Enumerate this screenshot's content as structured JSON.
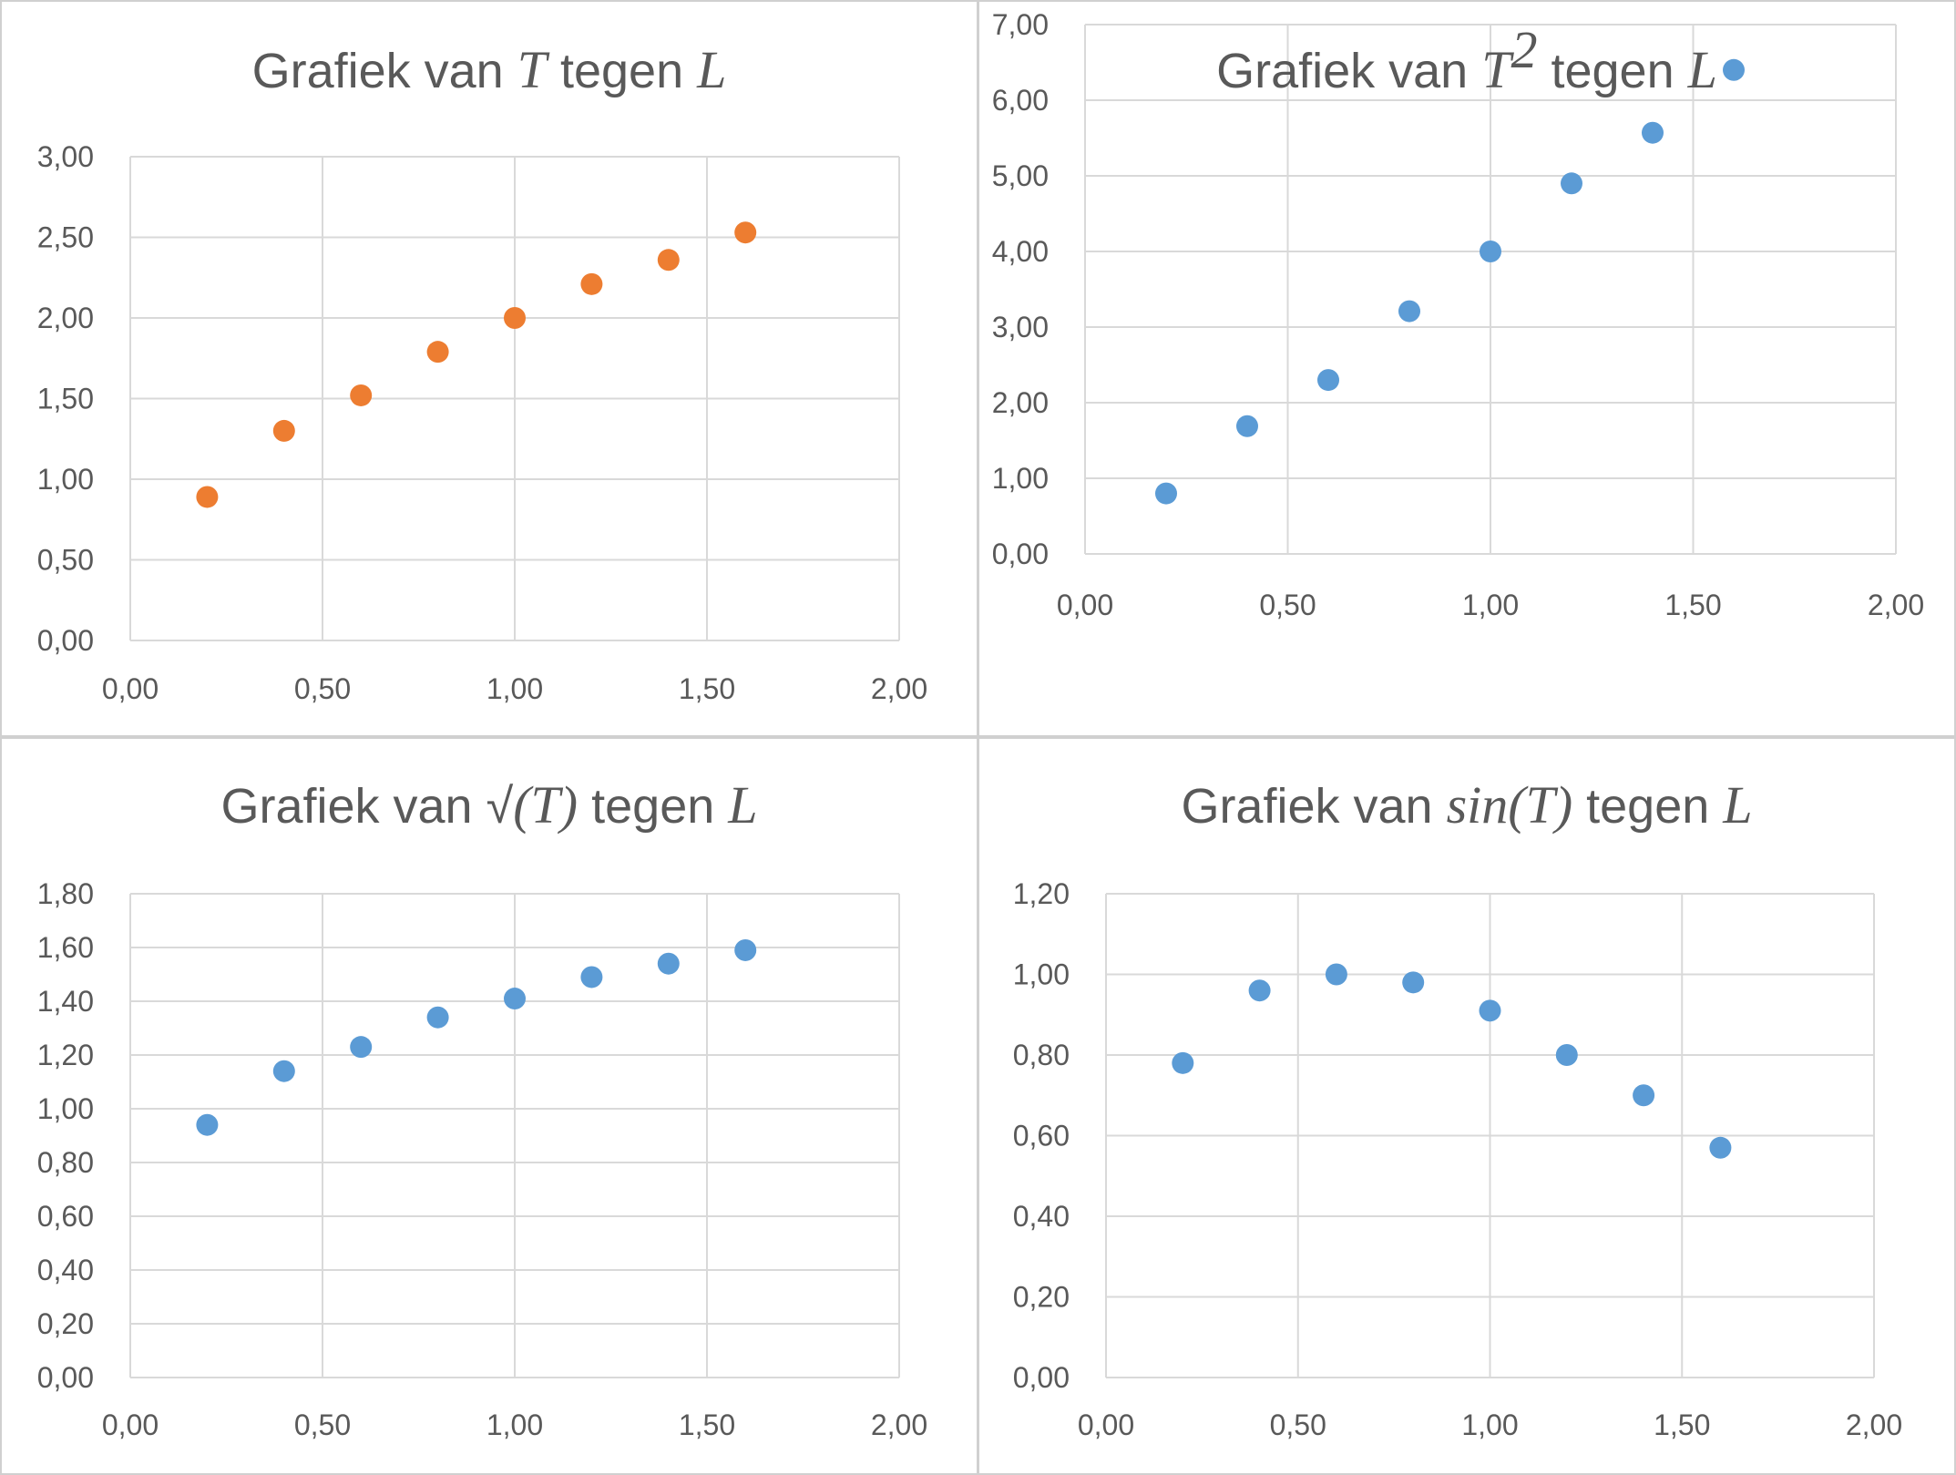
{
  "chart_data": [
    {
      "type": "scatter",
      "title_parts": [
        {
          "text": "Grafiek van ",
          "math": false
        },
        {
          "text": "T",
          "math": true
        },
        {
          "text": " tegen ",
          "math": false
        },
        {
          "text": "L",
          "math": true
        }
      ],
      "series": [
        {
          "color": "#ed7d31",
          "x": [
            0.2,
            0.4,
            0.6,
            0.8,
            1.0,
            1.2,
            1.4,
            1.6
          ],
          "y": [
            0.89,
            1.3,
            1.52,
            1.79,
            2.0,
            2.21,
            2.36,
            2.53
          ]
        }
      ],
      "xlim": [
        0,
        2
      ],
      "ylim": [
        0,
        3
      ],
      "xticks": [
        "0,00",
        "0,50",
        "1,00",
        "1,50",
        "2,00"
      ],
      "yticks": [
        "0,00",
        "0,50",
        "1,00",
        "1,50",
        "2,00",
        "2,50",
        "3,00"
      ],
      "xtick_values": [
        0,
        0.5,
        1.0,
        1.5,
        2.0
      ],
      "ytick_values": [
        0,
        0.5,
        1.0,
        1.5,
        2.0,
        2.5,
        3.0
      ],
      "grid": true
    },
    {
      "type": "scatter",
      "title_parts": [
        {
          "text": "Grafiek van ",
          "math": false
        },
        {
          "text": "T",
          "math": true
        },
        {
          "text": "2",
          "math": true,
          "sup": true
        },
        {
          "text": " tegen ",
          "math": false
        },
        {
          "text": "L",
          "math": true
        }
      ],
      "series": [
        {
          "color": "#5b9bd5",
          "x": [
            0.2,
            0.4,
            0.6,
            0.8,
            1.0,
            1.2,
            1.4,
            1.6
          ],
          "y": [
            0.8,
            1.69,
            2.3,
            3.21,
            4.0,
            4.9,
            5.57,
            6.4
          ]
        }
      ],
      "xlim": [
        0,
        2
      ],
      "ylim": [
        0,
        7
      ],
      "xticks": [
        "0,00",
        "0,50",
        "1,00",
        "1,50",
        "2,00"
      ],
      "yticks": [
        "0,00",
        "1,00",
        "2,00",
        "3,00",
        "4,00",
        "5,00",
        "6,00",
        "7,00"
      ],
      "xtick_values": [
        0,
        0.5,
        1.0,
        1.5,
        2.0
      ],
      "ytick_values": [
        0,
        1,
        2,
        3,
        4,
        5,
        6,
        7
      ],
      "grid": true
    },
    {
      "type": "scatter",
      "title_parts": [
        {
          "text": "Grafiek van ",
          "math": false
        },
        {
          "text": "√",
          "math": false
        },
        {
          "text": "(T)",
          "math": true
        },
        {
          "text": " tegen ",
          "math": false
        },
        {
          "text": "L",
          "math": true
        }
      ],
      "series": [
        {
          "color": "#5b9bd5",
          "x": [
            0.2,
            0.4,
            0.6,
            0.8,
            1.0,
            1.2,
            1.4,
            1.6
          ],
          "y": [
            0.94,
            1.14,
            1.23,
            1.34,
            1.41,
            1.49,
            1.54,
            1.59
          ]
        }
      ],
      "xlim": [
        0,
        2
      ],
      "ylim": [
        0,
        1.8
      ],
      "xticks": [
        "0,00",
        "0,50",
        "1,00",
        "1,50",
        "2,00"
      ],
      "yticks": [
        "0,00",
        "0,20",
        "0,40",
        "0,60",
        "0,80",
        "1,00",
        "1,20",
        "1,40",
        "1,60",
        "1,80"
      ],
      "xtick_values": [
        0,
        0.5,
        1.0,
        1.5,
        2.0
      ],
      "ytick_values": [
        0,
        0.2,
        0.4,
        0.6,
        0.8,
        1.0,
        1.2,
        1.4,
        1.6,
        1.8
      ],
      "grid": true
    },
    {
      "type": "scatter",
      "title_parts": [
        {
          "text": "Grafiek van ",
          "math": false
        },
        {
          "text": "sin(T)",
          "math": true
        },
        {
          "text": " tegen ",
          "math": false
        },
        {
          "text": "L",
          "math": true
        }
      ],
      "series": [
        {
          "color": "#5b9bd5",
          "x": [
            0.2,
            0.4,
            0.6,
            0.8,
            1.0,
            1.2,
            1.4,
            1.6
          ],
          "y": [
            0.78,
            0.96,
            1.0,
            0.98,
            0.91,
            0.8,
            0.7,
            0.57
          ]
        }
      ],
      "xlim": [
        0,
        2
      ],
      "ylim": [
        0,
        1.2
      ],
      "xticks": [
        "0,00",
        "0,50",
        "1,00",
        "1,50",
        "2,00"
      ],
      "yticks": [
        "0,00",
        "0,20",
        "0,40",
        "0,60",
        "0,80",
        "1,00",
        "1,20"
      ],
      "xtick_values": [
        0,
        0.5,
        1.0,
        1.5,
        2.0
      ],
      "ytick_values": [
        0,
        0.2,
        0.4,
        0.6,
        0.8,
        1.0,
        1.2
      ],
      "grid": true
    }
  ]
}
